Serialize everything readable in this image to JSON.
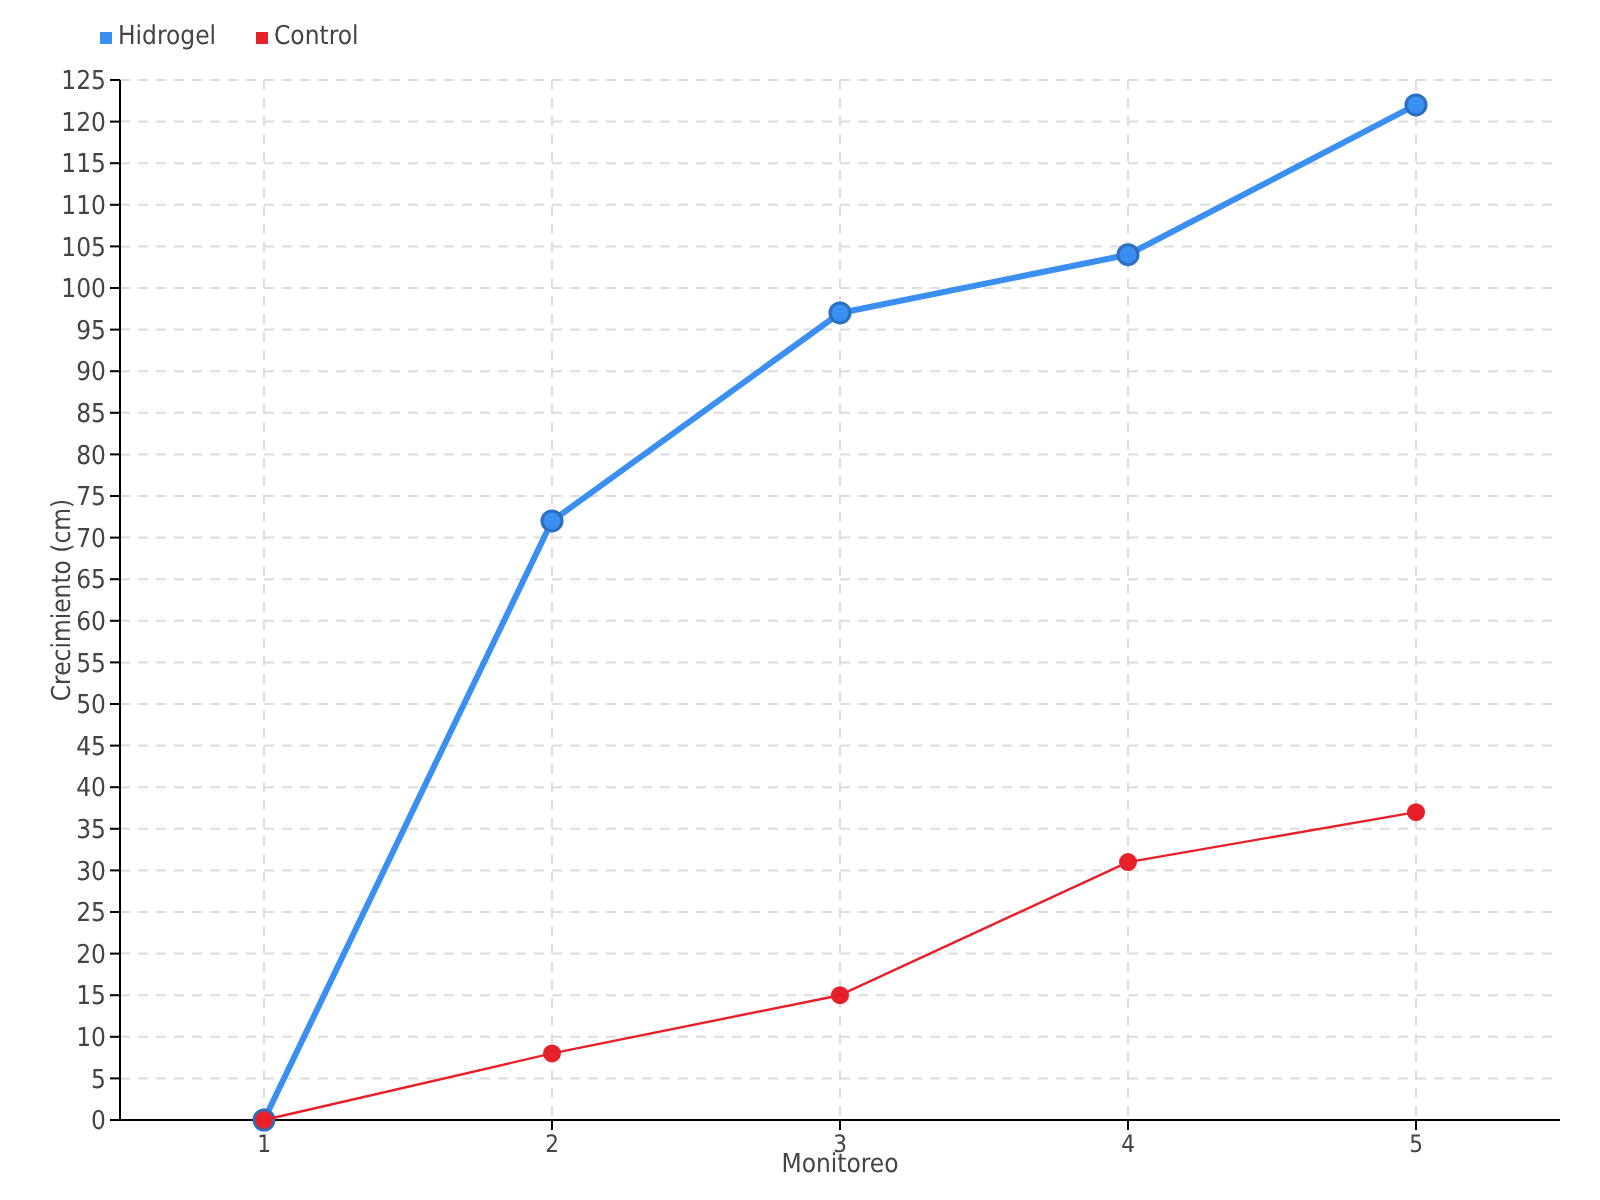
{
  "chart_data": {
    "type": "line",
    "xlabel": "Monitoreo",
    "ylabel": "Crecimiento (cm)",
    "categories": [
      "1",
      "2",
      "3",
      "4",
      "5"
    ],
    "series": [
      {
        "name": "Hidrogel",
        "color": "#3b8ff0",
        "values": [
          0,
          72,
          97,
          104,
          122
        ]
      },
      {
        "name": "Control",
        "color": "#e8202a",
        "values": [
          0,
          8,
          15,
          31,
          37
        ]
      }
    ],
    "ylim": [
      0,
      125
    ],
    "yticks": [
      0,
      5,
      10,
      15,
      20,
      25,
      30,
      35,
      40,
      45,
      50,
      55,
      60,
      65,
      70,
      75,
      80,
      85,
      90,
      95,
      100,
      105,
      110,
      115,
      120,
      125
    ],
    "grid": true,
    "legend": "top left",
    "marker": "circle"
  }
}
